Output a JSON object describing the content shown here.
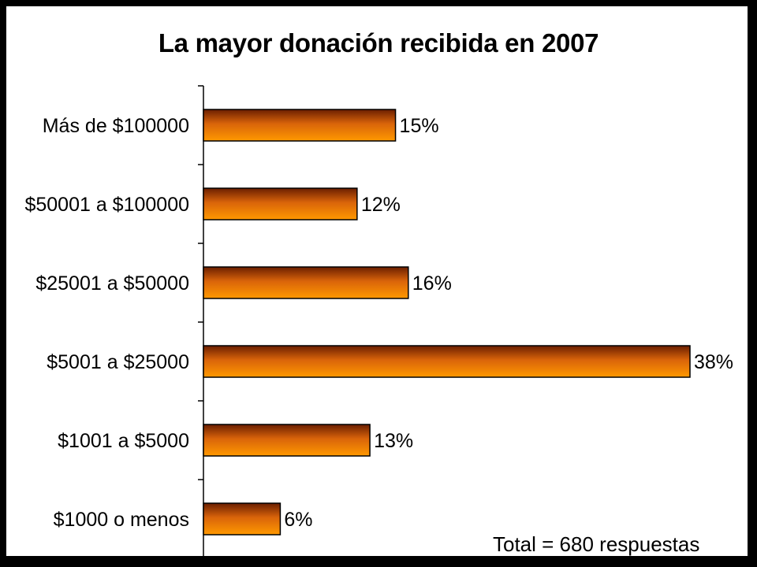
{
  "chart_data": {
    "type": "bar",
    "orientation": "horizontal",
    "title": "La mayor donación recibida en 2007",
    "xlabel": "",
    "ylabel": "",
    "categories": [
      "Más de $100000",
      "$50001 a $100000",
      "$25001 a $50000",
      "$5001 a $25000",
      "$1001 a $5000",
      "$1000 o menos"
    ],
    "values": [
      15,
      12,
      16,
      38,
      13,
      6
    ],
    "data_labels": [
      "15%",
      "12%",
      "16%",
      "38%",
      "13%",
      "6%"
    ],
    "xlim": [
      0,
      38
    ],
    "grid": false,
    "legend": "none",
    "annotation": "Total = 680 respuestas",
    "colors": {
      "bar_top": "#6b1e00",
      "bar_mid": "#d9640a",
      "bar_bottom": "#ff9900",
      "background": "#ffffff",
      "frame": "#000000"
    }
  }
}
